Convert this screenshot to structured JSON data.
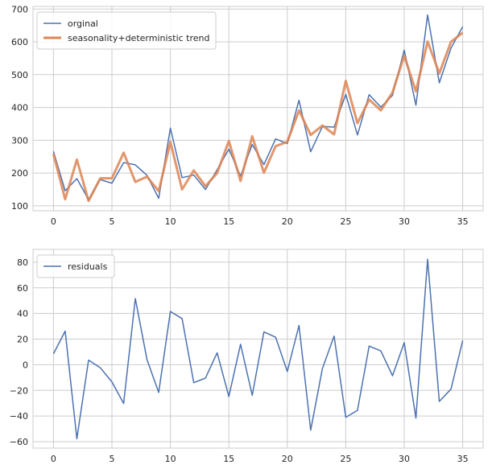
{
  "chart_data": [
    {
      "type": "line",
      "x": [
        0,
        1,
        2,
        3,
        4,
        5,
        6,
        7,
        8,
        9,
        10,
        11,
        12,
        13,
        14,
        15,
        16,
        17,
        18,
        19,
        20,
        21,
        22,
        23,
        24,
        25,
        26,
        27,
        28,
        29,
        30,
        31,
        32,
        33,
        34,
        35
      ],
      "series": [
        {
          "name": "orginal",
          "color": "#4c72b0",
          "values": [
            266,
            146,
            183,
            119,
            180,
            169,
            232,
            225,
            193,
            123,
            337,
            186,
            194,
            150,
            210,
            273,
            191,
            287,
            226,
            304,
            290,
            422,
            265,
            342,
            340,
            440,
            316,
            439,
            401,
            437,
            575,
            407,
            682,
            475,
            581,
            646
          ]
        },
        {
          "name": "seasonality+deterministic trend",
          "color": "#dd8452",
          "values": [
            258,
            120,
            241,
            115,
            184,
            184,
            262,
            173,
            189,
            145,
            295,
            150,
            208,
            160,
            200,
            298,
            176,
            312,
            201,
            282,
            295,
            391,
            316,
            345,
            318,
            481,
            352,
            424,
            391,
            446,
            558,
            449,
            601,
            504,
            600,
            628
          ]
        }
      ],
      "legend": "top-left",
      "grid": true,
      "xticks": [
        0,
        5,
        10,
        15,
        20,
        25,
        30,
        35
      ],
      "yticks": [
        100,
        200,
        300,
        400,
        500,
        600,
        700
      ],
      "xlim": [
        -1.75,
        36.75
      ],
      "ylim": [
        85,
        708
      ]
    },
    {
      "type": "line",
      "x": [
        0,
        1,
        2,
        3,
        4,
        5,
        6,
        7,
        8,
        9,
        10,
        11,
        12,
        13,
        14,
        15,
        16,
        17,
        18,
        19,
        20,
        21,
        22,
        23,
        24,
        25,
        26,
        27,
        28,
        29,
        30,
        31,
        32,
        33,
        34,
        35
      ],
      "series": [
        {
          "name": "residuals",
          "color": "#4c72b0",
          "values": [
            8.5,
            26.3,
            -57.7,
            3.6,
            -2.3,
            -13.4,
            -30.2,
            51.6,
            4.0,
            -21.6,
            41.6,
            36.0,
            -14.0,
            -10.4,
            9.3,
            -24.8,
            16.0,
            -23.8,
            25.6,
            21.5,
            -5.3,
            30.7,
            -51.0,
            -3.0,
            22.4,
            -41.0,
            -35.6,
            14.6,
            10.8,
            -8.6,
            17.3,
            -41.6,
            82.3,
            -28.6,
            -19.0,
            18.9
          ]
        }
      ],
      "legend": "top-left",
      "grid": true,
      "xticks": [
        0,
        5,
        10,
        15,
        20,
        25,
        30,
        35
      ],
      "yticks": [
        -60,
        -40,
        -20,
        0,
        20,
        40,
        60,
        80
      ],
      "xlim": [
        -1.75,
        36.75
      ],
      "ylim": [
        -65,
        90
      ]
    }
  ]
}
